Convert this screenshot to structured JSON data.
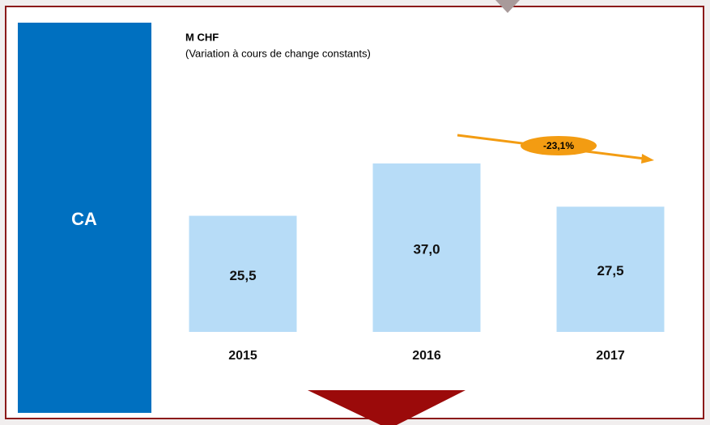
{
  "chart_data": {
    "type": "bar",
    "side_label": "CA",
    "title": "M CHF",
    "subtitle": "(Variation à cours de change constants)",
    "categories": [
      "2015",
      "2016",
      "2017"
    ],
    "values": [
      25.5,
      37.0,
      27.5
    ],
    "value_labels": [
      "25,5",
      "37,0",
      "27,5"
    ],
    "color": "#b7dcf7",
    "ylim": [
      0,
      40
    ],
    "annotation": "-23,1%"
  }
}
